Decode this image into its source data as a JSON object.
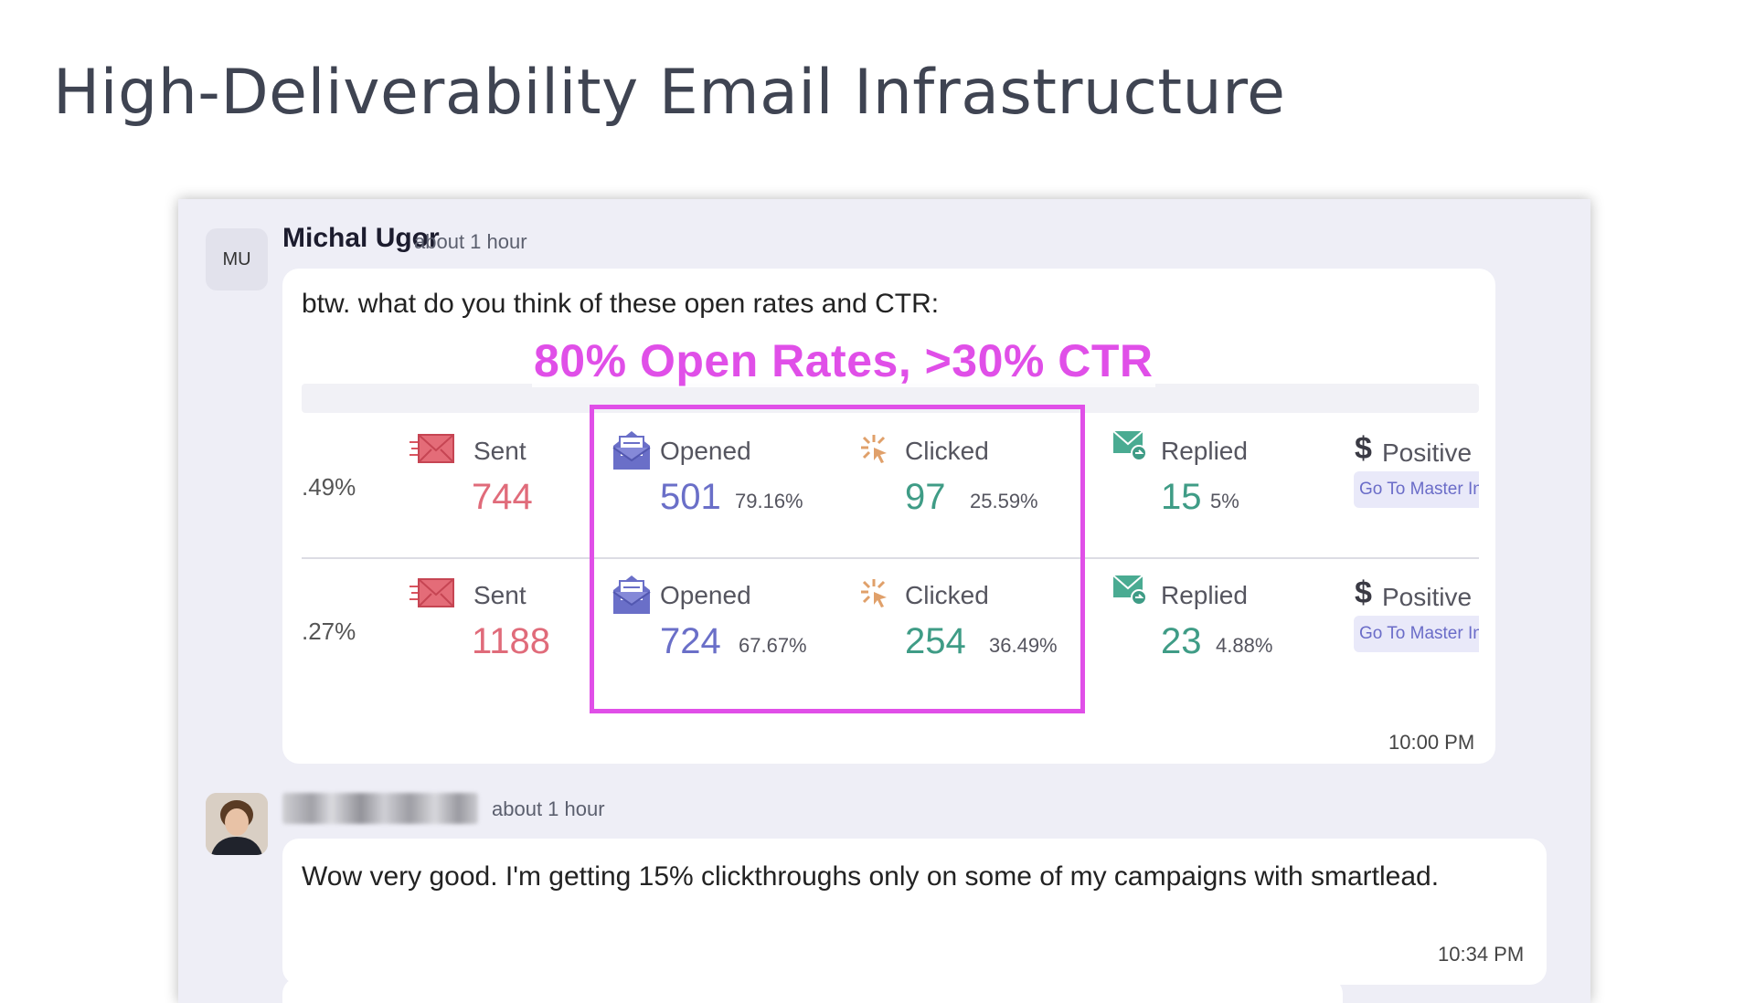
{
  "slide": {
    "title": "High-Deliverability Email Infrastructure"
  },
  "highlight": {
    "label": "80% Open Rates, >30% CTR",
    "color": "#e04fe8"
  },
  "message1": {
    "avatar_initials": "MU",
    "author": "Michal Ugor",
    "time_ago": "about 1 hour",
    "text": "btw. what do you think of these open rates and CTR:",
    "timestamp": "10:00 PM"
  },
  "stats": {
    "rows": [
      {
        "prev_pct": ".49%",
        "sent_label": "Sent",
        "sent_value": "744",
        "opened_label": "Opened",
        "opened_value": "501",
        "opened_pct": "79.16%",
        "clicked_label": "Clicked",
        "clicked_value": "97",
        "clicked_pct": "25.59%",
        "replied_label": "Replied",
        "replied_value": "15",
        "replied_pct": "5%",
        "positive_label": "Positive",
        "go_label": "Go To Master Inbox"
      },
      {
        "prev_pct": ".27%",
        "sent_label": "Sent",
        "sent_value": "1188",
        "opened_label": "Opened",
        "opened_value": "724",
        "opened_pct": "67.67%",
        "clicked_label": "Clicked",
        "clicked_value": "254",
        "clicked_pct": "36.49%",
        "replied_label": "Replied",
        "replied_value": "23",
        "replied_pct": "4.88%",
        "positive_label": "Positive",
        "go_label": "Go To Master Inbox"
      }
    ],
    "colors": {
      "sent": "#e06b7a",
      "opened": "#6a6fc8",
      "clicked": "#3f9c86",
      "replied": "#3f9c86"
    }
  },
  "message2": {
    "time_ago": "about 1 hour",
    "text": "Wow very good. I'm getting 15% clickthroughs only on some of my campaigns with smartlead.",
    "timestamp": "10:34 PM"
  }
}
